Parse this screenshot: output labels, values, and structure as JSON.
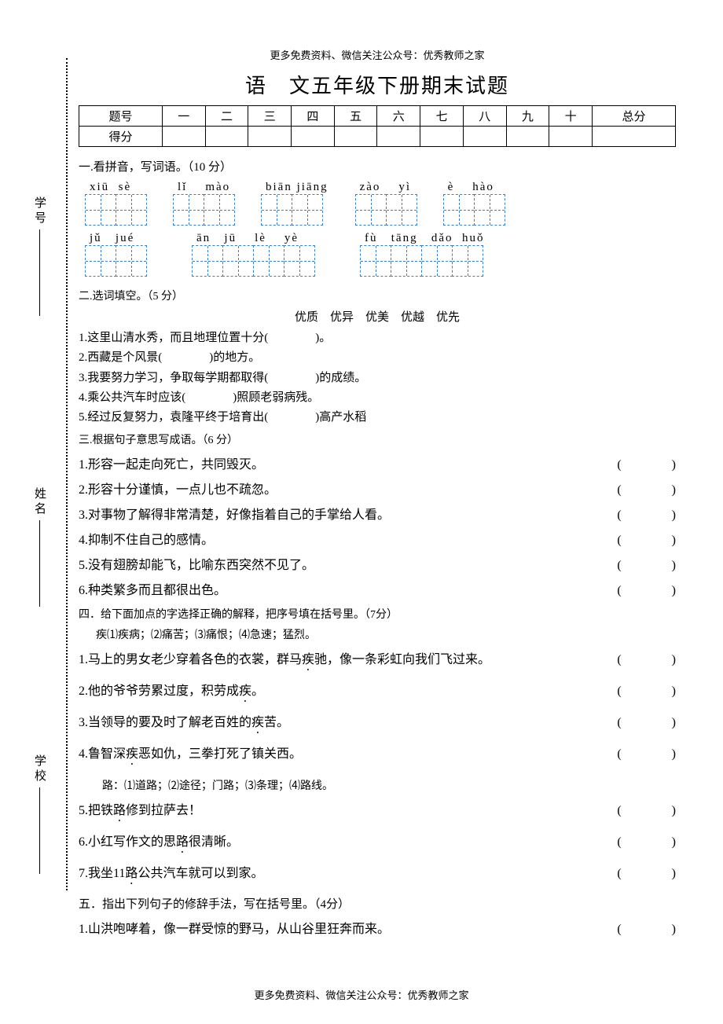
{
  "meta": {
    "header_note": "更多免费资料、微信关注公众号：优秀教师之家",
    "footer_note": "更多免费资料、微信关注公众号：优秀教师之家",
    "title": "语　文五年级下册期末试题"
  },
  "binding_labels": {
    "top": "学号",
    "mid": "姓名",
    "bot": "学校"
  },
  "score_table": {
    "row1": [
      "题号",
      "一",
      "二",
      "三",
      "四",
      "五",
      "六",
      "七",
      "八",
      "九",
      "十",
      "总分"
    ],
    "row2_label": "得分"
  },
  "sec1": {
    "heading": "一.看拼音，写词语。（10 分）",
    "row1": [
      {
        "pinyin": "xiū  sè",
        "boxes": 2
      },
      {
        "pinyin": "lǐ    mào",
        "boxes": 2
      },
      {
        "pinyin": "biān jiāng",
        "boxes": 2
      },
      {
        "pinyin": "zào    yì",
        "boxes": 2
      },
      {
        "pinyin": "è    hào",
        "boxes": 2
      }
    ],
    "row2": [
      {
        "pinyin": "jǔ   jué",
        "boxes": 2
      },
      {
        "pinyin": "ān   jū    lè    yè",
        "boxes": 4
      },
      {
        "pinyin": "fù   tāng   dǎo  huǒ",
        "boxes": 4
      }
    ]
  },
  "sec2": {
    "heading": "二.选词填空。（5 分）",
    "options": "优质　优异　优美　优越　优先",
    "items": [
      "1.这里山清水秀，而且地理位置十分(　　　　)。",
      "2.西藏是个风景(　　　　)的地方。",
      "3.我要努力学习，争取每学期都取得(　　　　)的成绩。",
      "4.乘公共汽车时应该(　　　　)照顾老弱病残。",
      "5.经过反复努力，袁隆平终于培育出(　　　　)高产水稻"
    ]
  },
  "sec3": {
    "heading": "三.根据句子意思写成语。（6 分）",
    "items": [
      "1.形容一起走向死亡，共同毁灭。",
      "2.形容十分谨慎，一点儿也不疏忽。",
      "3.对事物了解得非常清楚，好像指着自己的手掌给人看。",
      "4.抑制不住自己的感情。",
      "5.没有翅膀却能飞，比喻东西突然不见了。",
      "6.种类繁多而且都很出色。"
    ]
  },
  "sec4": {
    "heading": "四．给下面加点的字选择正确的解释，把序号填在括号里。（7分）",
    "key1": "疾⑴疾病；⑵痛苦；⑶痛恨；⑷急速；猛烈。",
    "items1": [
      {
        "pre": "1.马上的男女老少穿着各色的衣裳，群马",
        "dot": "疾",
        "post": "驰，像一条彩虹向我们飞过来。"
      },
      {
        "pre": "2.他的爷爷劳累过度，积劳成",
        "dot": "疾",
        "post": "。"
      },
      {
        "pre": "3.当领导的要及时了解老百姓的",
        "dot": "疾",
        "post": "苦。"
      },
      {
        "pre": "4.鲁智深",
        "dot": "疾",
        "post": "恶如仇，三拳打死了镇关西。"
      }
    ],
    "key2": "路：⑴道路；⑵途径；门路；⑶条理；⑷路线。",
    "items2": [
      {
        "pre": "5.把铁",
        "dot": "路",
        "post": "修到拉萨去！"
      },
      {
        "pre": "6.小红写作文的思",
        "dot": "路",
        "post": "很清晰。"
      },
      {
        "pre": "7.我坐11",
        "dot": "路",
        "post": "公共汽车就可以到家。"
      }
    ]
  },
  "sec5": {
    "heading": "五．指出下列句子的修辞手法，写在括号里。（4分）",
    "items": [
      "1.山洪咆哮着，像一群受惊的野马，从山谷里狂奔而来。"
    ]
  },
  "paren": "(　　　　)",
  "colors": {
    "box_border": "#3b7fc4",
    "text": "#000000",
    "bg": "#ffffff"
  }
}
